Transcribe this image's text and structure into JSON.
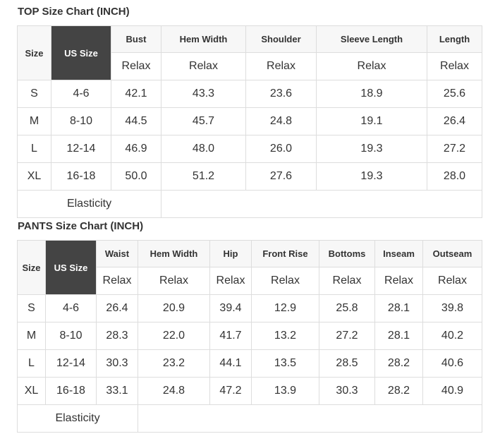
{
  "top": {
    "title": "TOP Size Chart (INCH)",
    "size_label": "Size",
    "us_label": "US Size",
    "columns": [
      "Bust",
      "Hem Width",
      "Shoulder",
      "Sleeve Length",
      "Length"
    ],
    "fit": [
      "Relax",
      "Relax",
      "Relax",
      "Relax",
      "Relax"
    ],
    "rows": [
      [
        "S",
        "4-6",
        "42.1",
        "43.3",
        "23.6",
        "18.9",
        "25.6"
      ],
      [
        "M",
        "8-10",
        "44.5",
        "45.7",
        "24.8",
        "19.1",
        "26.4"
      ],
      [
        "L",
        "12-14",
        "46.9",
        "48.0",
        "26.0",
        "19.3",
        "27.2"
      ],
      [
        "XL",
        "16-18",
        "50.0",
        "51.2",
        "27.6",
        "19.3",
        "28.0"
      ]
    ],
    "footer": "Elasticity"
  },
  "pants": {
    "title": "PANTS Size Chart (INCH)",
    "size_label": "Size",
    "us_label": "US Size",
    "columns": [
      "Waist",
      "Hem Width",
      "Hip",
      "Front Rise",
      "Bottoms",
      "Inseam",
      "Outseam"
    ],
    "fit": [
      "Relax",
      "Relax",
      "Relax",
      "Relax",
      "Relax",
      "Relax",
      "Relax"
    ],
    "rows": [
      [
        "S",
        "4-6",
        "26.4",
        "20.9",
        "39.4",
        "12.9",
        "25.8",
        "28.1",
        "39.8"
      ],
      [
        "M",
        "8-10",
        "28.3",
        "22.0",
        "41.7",
        "13.2",
        "27.2",
        "28.1",
        "40.2"
      ],
      [
        "L",
        "12-14",
        "30.3",
        "23.2",
        "44.1",
        "13.5",
        "28.5",
        "28.2",
        "40.6"
      ],
      [
        "XL",
        "16-18",
        "33.1",
        "24.8",
        "47.2",
        "13.9",
        "30.3",
        "28.2",
        "40.9"
      ]
    ],
    "footer": "Elasticity"
  }
}
